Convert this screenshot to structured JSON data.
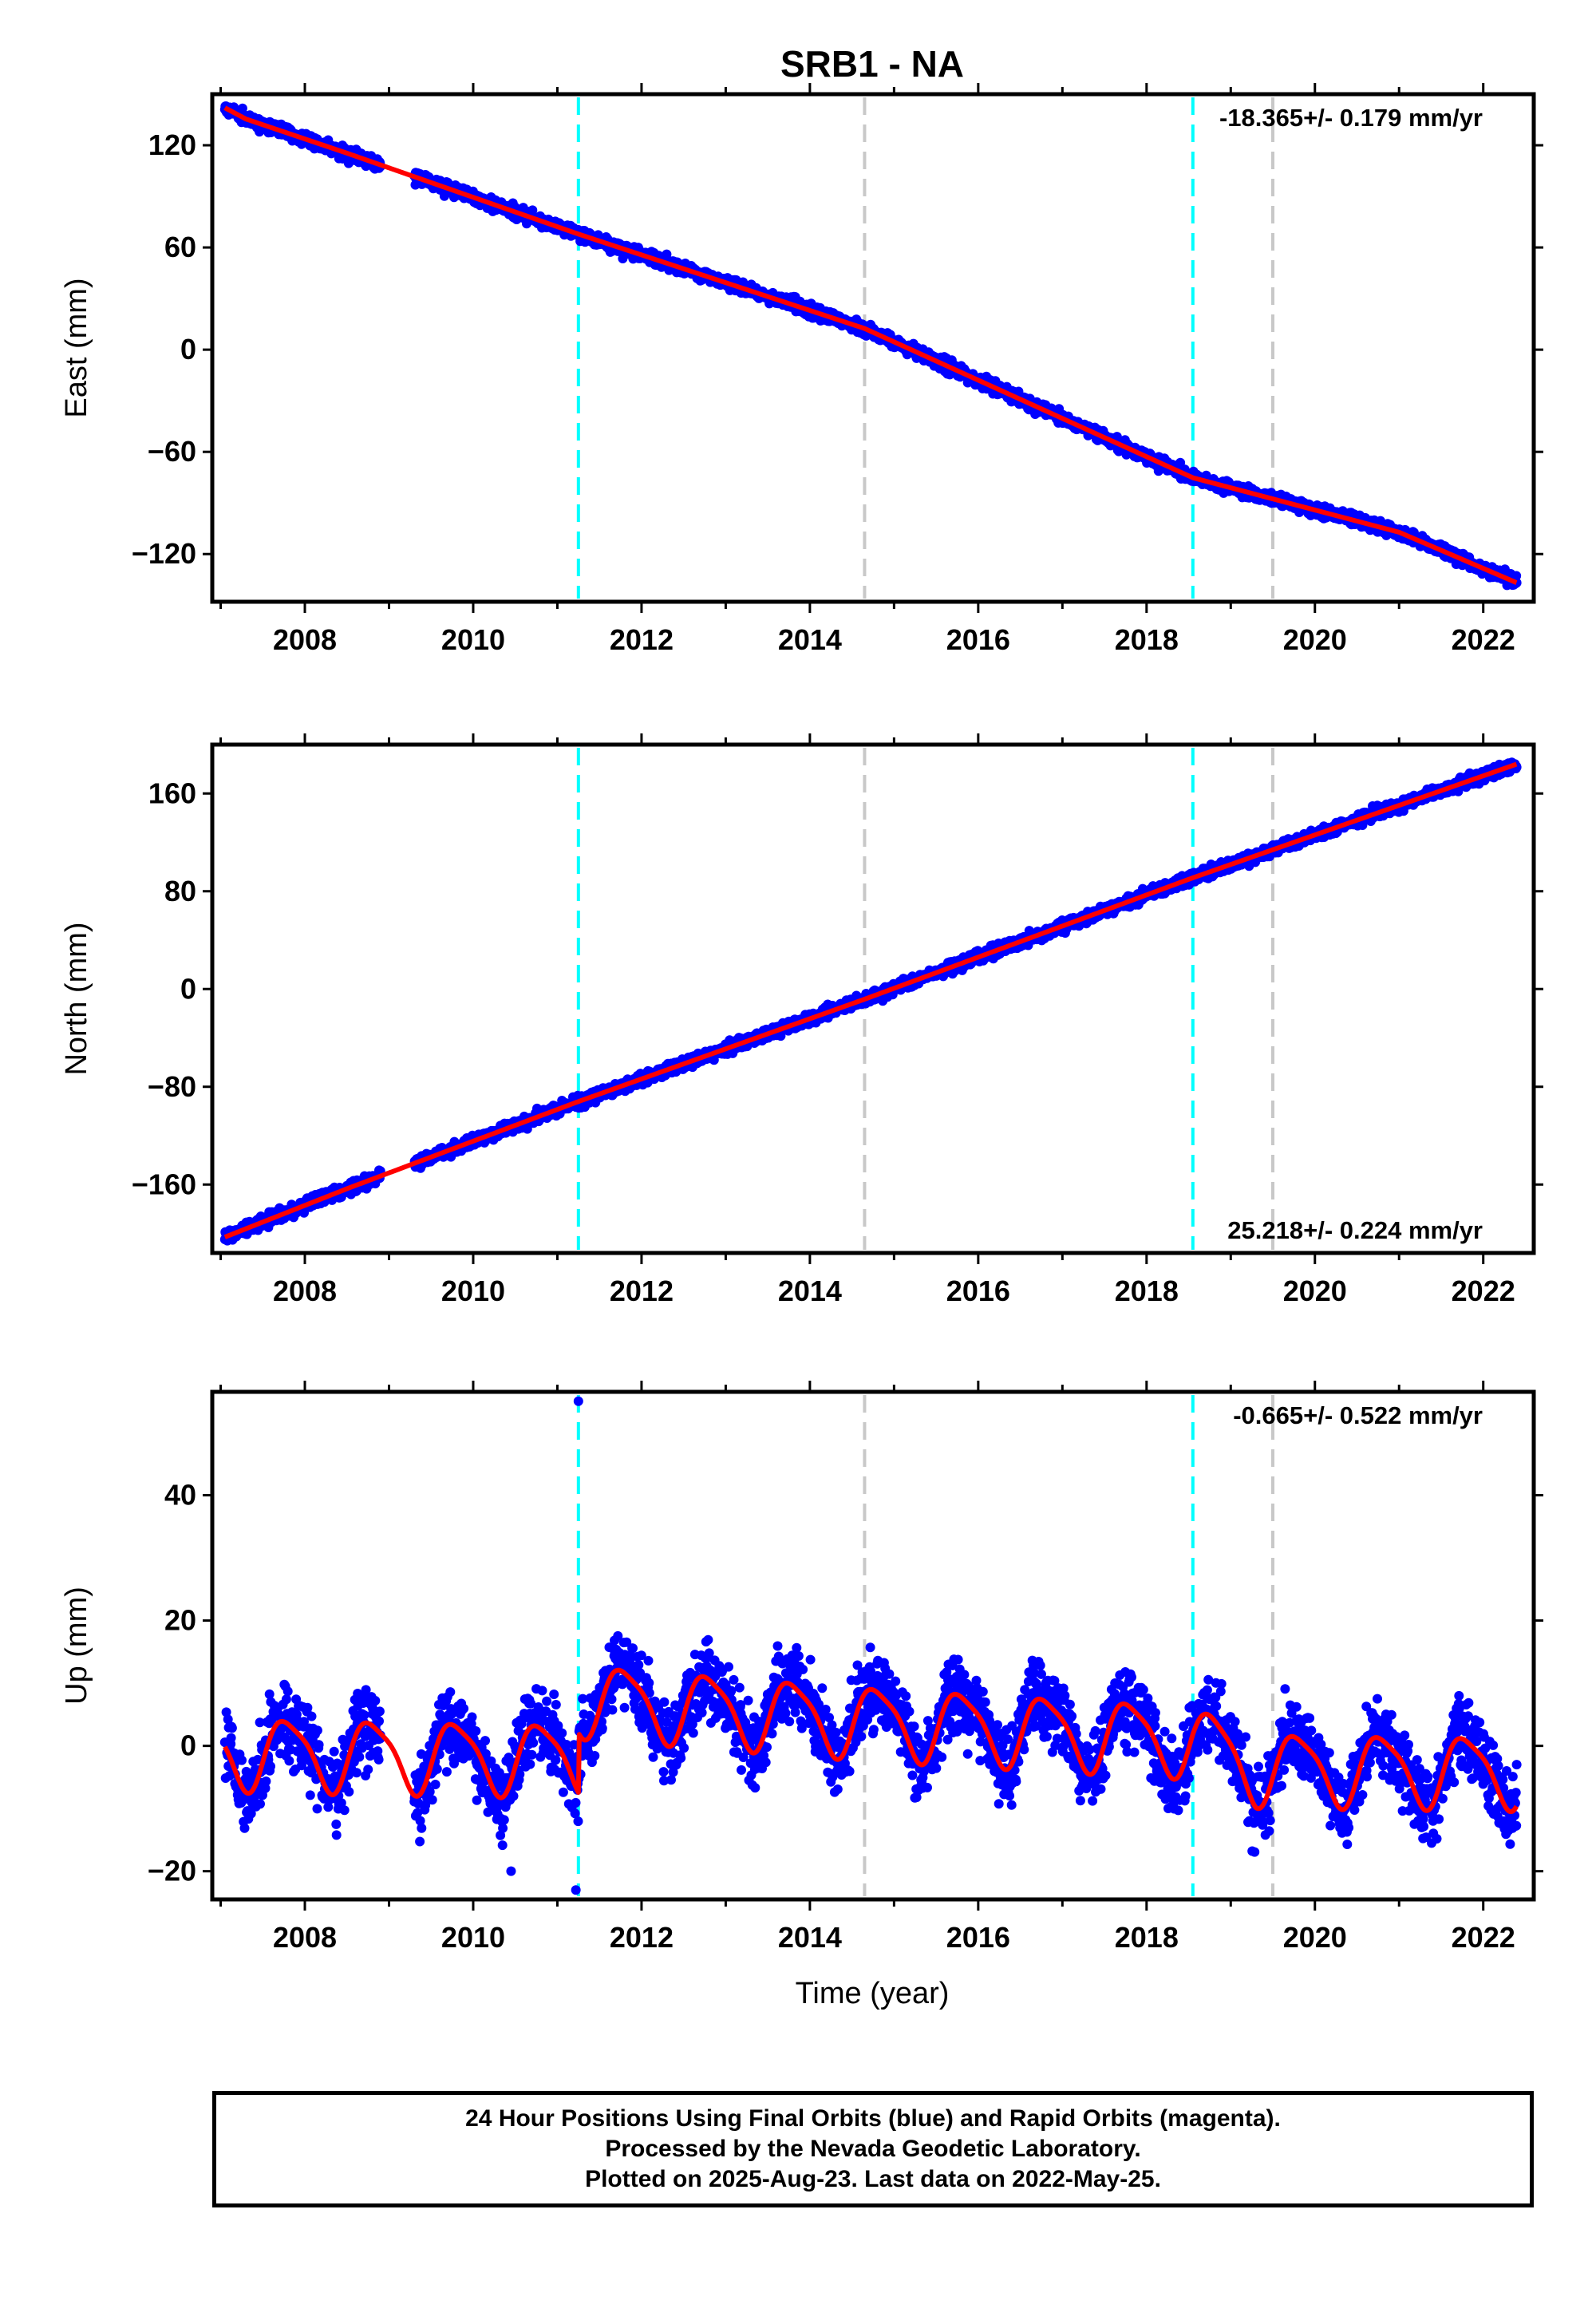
{
  "title": "SRB1 - NA",
  "colors": {
    "points": "#0000ff",
    "fit": "#ff0000",
    "equipment_change": "#00ffff",
    "other_change": "#c8c8c8",
    "frame": "#000000"
  },
  "x_ticks": [
    "2008",
    "2010",
    "2012",
    "2014",
    "2016",
    "2018",
    "2020",
    "2022"
  ],
  "x_label": "Time (year)",
  "footer": {
    "line1": "24 Hour Positions Using Final Orbits (blue) and Rapid Orbits (magenta).",
    "line2": "Processed by the Nevada Geodetic Laboratory.",
    "line3": "Plotted on 2025-Aug-23. Last data on 2022-May-25."
  },
  "chart_data": [
    {
      "type": "scatter",
      "name": "east",
      "ylabel": "East (mm)",
      "xlim": [
        2006.9,
        2022.6
      ],
      "ylim": [
        -148,
        150
      ],
      "yticks": [
        -120,
        -60,
        0,
        60,
        120
      ],
      "ytick_labels": [
        "−120",
        "−60",
        "0",
        "60",
        "120"
      ],
      "rate_text": "-18.365+/- 0.179 mm/yr",
      "rate_position": "top-right",
      "x_start": 2007.05,
      "x_end": 2022.4,
      "gap": [
        2008.9,
        2009.3
      ],
      "trend": {
        "start": 142,
        "slope": -18.365
      },
      "noise_amplitude": 3.0,
      "seasonal": [
        {
          "x": 2007.05,
          "v": 0
        },
        {
          "x": 2007.3,
          "v": -2
        },
        {
          "x": 2008.5,
          "v": 0
        },
        {
          "x": 2011.25,
          "v": 3
        },
        {
          "x": 2014.65,
          "v": 10
        },
        {
          "x": 2018.55,
          "v": -6
        },
        {
          "x": 2021.0,
          "v": 7
        },
        {
          "x": 2022.4,
          "v": 3
        }
      ],
      "equipment_changes": [
        2011.25,
        2018.55
      ],
      "other_changes": [
        2014.65,
        2019.5
      ]
    },
    {
      "type": "scatter",
      "name": "north",
      "ylabel": "North (mm)",
      "xlim": [
        2006.9,
        2022.6
      ],
      "ylim": [
        -216,
        200
      ],
      "yticks": [
        -160,
        -80,
        0,
        80,
        160
      ],
      "ytick_labels": [
        "−160",
        "−80",
        "0",
        "80",
        "160"
      ],
      "rate_text": "25.218+/- 0.224 mm/yr",
      "rate_position": "bottom-right",
      "x_start": 2007.05,
      "x_end": 2022.4,
      "gap": [
        2008.9,
        2009.3
      ],
      "trend": {
        "start": -203,
        "slope": 25.218
      },
      "noise_amplitude": 4.0,
      "seasonal": [
        {
          "x": 2007.05,
          "v": 0
        },
        {
          "x": 2008.5,
          "v": 3
        },
        {
          "x": 2011.25,
          "v": 5
        },
        {
          "x": 2014.65,
          "v": 3
        },
        {
          "x": 2018.55,
          "v": 4
        },
        {
          "x": 2022.4,
          "v": 0
        }
      ],
      "equipment_changes": [
        2011.25,
        2018.55
      ],
      "other_changes": [
        2014.65,
        2019.5
      ]
    },
    {
      "type": "scatter",
      "name": "up",
      "ylabel": "Up (mm)",
      "xlim": [
        2006.9,
        2022.6
      ],
      "ylim": [
        -24.5,
        56.5
      ],
      "yticks": [
        -20,
        0,
        20,
        40
      ],
      "ytick_labels": [
        "−20",
        "0",
        "20",
        "40"
      ],
      "rate_text": "-0.665+/- 0.522 mm/yr",
      "rate_position": "top-right",
      "x_start": 2007.05,
      "x_end": 2022.4,
      "gap": [
        2008.9,
        2009.3
      ],
      "annual_amplitude": 5.5,
      "noise_amplitude": 4.0,
      "offsets": [
        {
          "x": 2007.05,
          "v": -1
        },
        {
          "x": 2011.25,
          "v": -2
        },
        {
          "x": 2011.26,
          "v": 7.5
        },
        {
          "x": 2014.65,
          "v": 4
        },
        {
          "x": 2018.55,
          "v": 1
        },
        {
          "x": 2019.3,
          "v": -3.5
        },
        {
          "x": 2022.4,
          "v": -4
        }
      ],
      "outliers": [
        {
          "x": 2011.25,
          "y": 55
        },
        {
          "x": 2011.22,
          "y": -23
        },
        {
          "x": 2010.45,
          "y": -20
        }
      ],
      "equipment_changes": [
        2011.25,
        2018.55
      ],
      "other_changes": [
        2014.65,
        2019.5
      ]
    }
  ]
}
